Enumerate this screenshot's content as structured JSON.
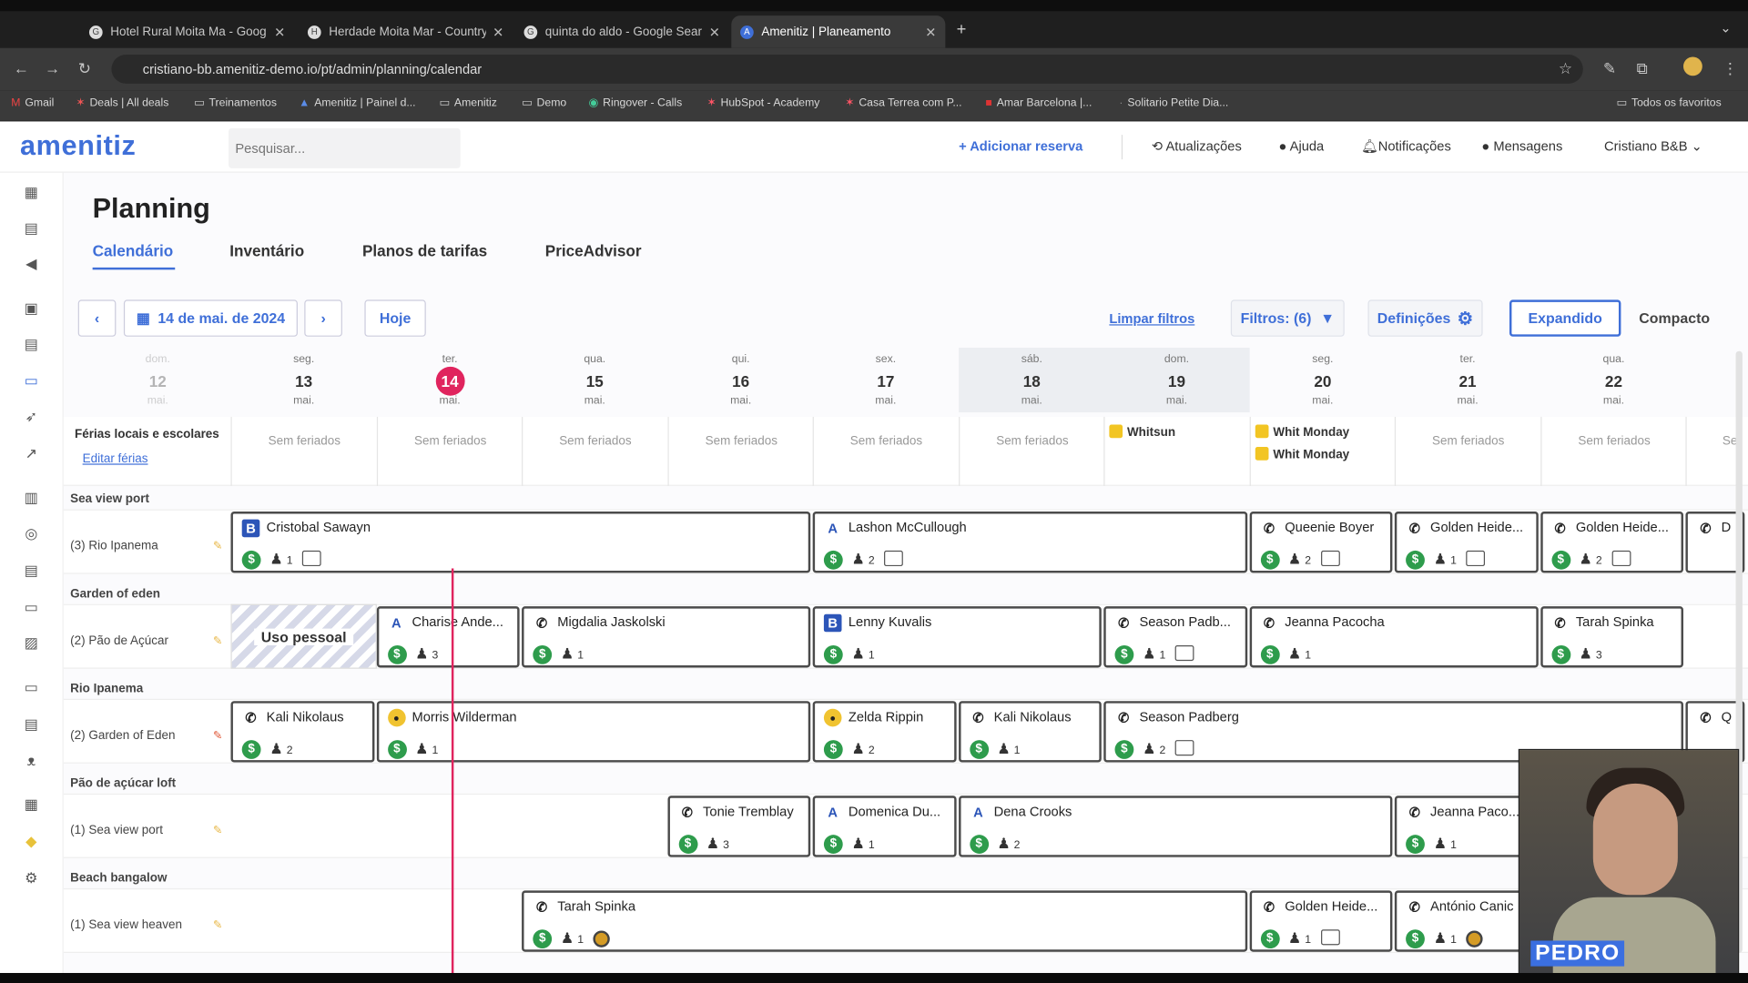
{
  "browser": {
    "tabs": [
      {
        "title": "Hotel Rural Moita Ma - Goog",
        "fav": "G"
      },
      {
        "title": "Herdade Moita Mar - Country",
        "fav": "H"
      },
      {
        "title": "quinta do aldo - Google Sear",
        "fav": "G"
      },
      {
        "title": "Amenitiz | Planeamento",
        "fav": "A"
      }
    ],
    "url": "cristiano-bb.amenitiz-demo.io/pt/admin/planning/calendar",
    "bookmarks": [
      "Gmail",
      "Deals | All deals",
      "Treinamentos",
      "Amenitiz | Painel d...",
      "Amenitiz",
      "Demo",
      "Ringover - Calls",
      "HubSpot - Academy",
      "Casa Terrea com P...",
      "Amar Barcelona |...",
      "Solitario Petite Dia..."
    ],
    "bookmarks_all": "Todos os favoritos"
  },
  "header": {
    "logo": "amenitiz",
    "search_placeholder": "Pesquisar...",
    "add_booking": "+ Adicionar reserva",
    "updates": "Atualizações",
    "help": "Ajuda",
    "notifications": "Notificações",
    "messages": "Mensagens",
    "user": "Cristiano B&B"
  },
  "page": {
    "title": "Planning",
    "tabs": [
      "Calendário",
      "Inventário",
      "Planos de tarifas",
      "PriceAdvisor"
    ],
    "date": "14 de mai. de 2024",
    "today": "Hoje",
    "clear_filters": "Limpar filtros",
    "filters": "Filtros: (6)",
    "settings": "Definições",
    "expanded": "Expandido",
    "compact": "Compacto"
  },
  "days": [
    {
      "dow": "dom.",
      "num": "12",
      "mon": "mai."
    },
    {
      "dow": "seg.",
      "num": "13",
      "mon": "mai."
    },
    {
      "dow": "ter.",
      "num": "14",
      "mon": "mai."
    },
    {
      "dow": "qua.",
      "num": "15",
      "mon": "mai."
    },
    {
      "dow": "qui.",
      "num": "16",
      "mon": "mai."
    },
    {
      "dow": "sex.",
      "num": "17",
      "mon": "mai."
    },
    {
      "dow": "sáb.",
      "num": "18",
      "mon": "mai."
    },
    {
      "dow": "dom.",
      "num": "19",
      "mon": "mai."
    },
    {
      "dow": "seg.",
      "num": "20",
      "mon": "mai."
    },
    {
      "dow": "ter.",
      "num": "21",
      "mon": "mai."
    },
    {
      "dow": "qua.",
      "num": "22",
      "mon": "mai."
    }
  ],
  "holidays": {
    "label": "Férias locais e escolares",
    "edit": "Editar férias",
    "none": "Sem feriados",
    "whitsun": "Whitsun",
    "whit_monday": "Whit Monday"
  },
  "sections": [
    {
      "name": "Sea view port",
      "room": "(3) Rio Ipanema"
    },
    {
      "name": "Garden of eden",
      "room": "(2) Pão de Açúcar"
    },
    {
      "name": "Rio Ipanema",
      "room": "(2) Garden of Eden"
    },
    {
      "name": "Pão de açúcar loft",
      "room": "(1) Sea view port"
    },
    {
      "name": "Beach bangalow",
      "room": "(1) Sea view heaven"
    }
  ],
  "personal_use": "Uso pessoal",
  "bookings": [
    {
      "name": "Cristobal Sawayn",
      "src": "B",
      "guests": "1"
    },
    {
      "name": "Lashon McCullough",
      "src": "A",
      "guests": "2"
    },
    {
      "name": "Queenie Boyer",
      "src": "P",
      "guests": "2"
    },
    {
      "name": "Golden Heide...",
      "src": "P",
      "guests": "1"
    },
    {
      "name": "Golden Heide...",
      "src": "P",
      "guests": "2"
    },
    {
      "name": "D",
      "src": "P",
      "guests": ""
    },
    {
      "name": "Charise Ande...",
      "src": "A",
      "guests": "3"
    },
    {
      "name": "Migdalia Jaskolski",
      "src": "P",
      "guests": "1"
    },
    {
      "name": "Lenny Kuvalis",
      "src": "B",
      "guests": "1"
    },
    {
      "name": "Season Padb...",
      "src": "P",
      "guests": "1"
    },
    {
      "name": "Jeanna Pacocha",
      "src": "P",
      "guests": "1"
    },
    {
      "name": "Tarah Spinka",
      "src": "P",
      "guests": "3"
    },
    {
      "name": "Kali Nikolaus",
      "src": "P",
      "guests": "2"
    },
    {
      "name": "Morris Wilderman",
      "src": "E",
      "guests": "1"
    },
    {
      "name": "Zelda Rippin",
      "src": "E",
      "guests": "2"
    },
    {
      "name": "Kali Nikolaus",
      "src": "P",
      "guests": "1"
    },
    {
      "name": "Season Padberg",
      "src": "P",
      "guests": "2"
    },
    {
      "name": "Q",
      "src": "P",
      "guests": ""
    },
    {
      "name": "Tonie Tremblay",
      "src": "P",
      "guests": "3"
    },
    {
      "name": "Domenica Du...",
      "src": "A",
      "guests": "1"
    },
    {
      "name": "Dena Crooks",
      "src": "A",
      "guests": "2"
    },
    {
      "name": "Jeanna Paco...",
      "src": "P",
      "guests": "1"
    },
    {
      "name": "Tarah Spinka",
      "src": "P",
      "guests": "1"
    },
    {
      "name": "Golden Heide...",
      "src": "P",
      "guests": "1"
    },
    {
      "name": "António Canic",
      "src": "P",
      "guests": "1"
    }
  ],
  "webcam": {
    "name": "PEDRO"
  },
  "colors": {
    "accent": "#3f6fd8",
    "today": "#e0245e",
    "paid": "#2e9c4c",
    "holiday": "#f2c523"
  }
}
